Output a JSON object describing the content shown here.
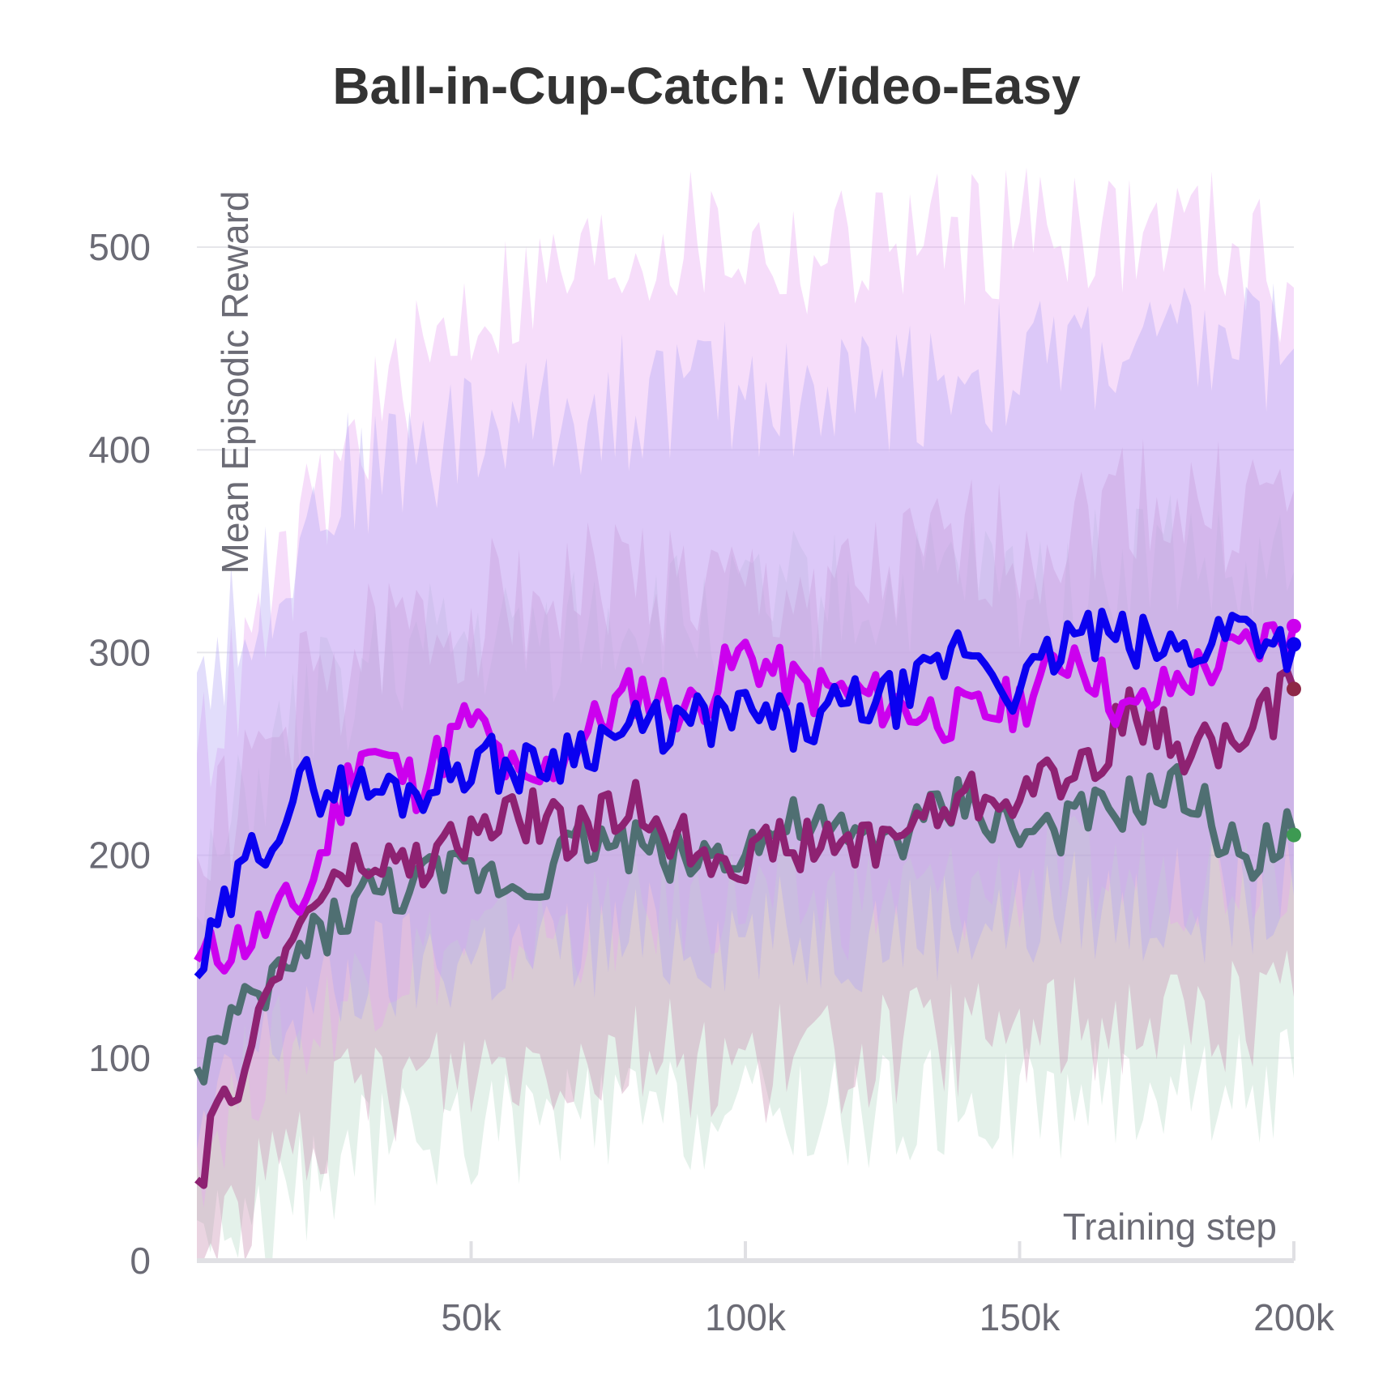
{
  "chart_data": {
    "type": "line",
    "title": "Ball-in-Cup-Catch: Video-Easy",
    "xlabel": "Training step",
    "ylabel": "Mean Episodic Reward",
    "xlim": [
      0,
      200000
    ],
    "ylim": [
      0,
      500
    ],
    "x_ticks": [
      "50k",
      "100k",
      "150k",
      "200k"
    ],
    "x_tick_values": [
      50000,
      100000,
      150000,
      200000
    ],
    "y_ticks": [
      "0",
      "100",
      "200",
      "300",
      "400",
      "500"
    ],
    "y_tick_values": [
      0,
      100,
      200,
      300,
      400,
      500
    ],
    "grid": "horizontal",
    "legend": "none",
    "colors": {
      "magenta": "#cc00ee",
      "blue": "#0a00f0",
      "maroon": "#8e2272",
      "slate": "#4f6f72",
      "end_green": "#3d9a52",
      "end_maroon": "#8e2747",
      "band_magenta": "#e7a6f2",
      "band_blue": "#b3a6f4",
      "band_maroon": "#c98fb0",
      "band_slate": "#b8d9c7",
      "grid": "#e6e6ea",
      "axis": "#e0e0e4"
    },
    "series": [
      {
        "key": "magenta",
        "x": [
          0,
          10000,
          20000,
          30000,
          40000,
          50000,
          60000,
          70000,
          80000,
          90000,
          100000,
          110000,
          120000,
          130000,
          140000,
          150000,
          160000,
          170000,
          180000,
          190000,
          200000
        ],
        "y": [
          148,
          160,
          180,
          255,
          235,
          268,
          230,
          258,
          282,
          272,
          300,
          282,
          280,
          272,
          268,
          275,
          302,
          268,
          288,
          300,
          313
        ],
        "lower": [
          50,
          95,
          110,
          140,
          150,
          155,
          160,
          165,
          170,
          175,
          180,
          175,
          178,
          180,
          182,
          185,
          190,
          188,
          192,
          195,
          200
        ],
        "upper": [
          250,
          300,
          360,
          410,
          440,
          470,
          480,
          490,
          500,
          505,
          500,
          495,
          500,
          505,
          505,
          510,
          515,
          505,
          510,
          500,
          480
        ]
      },
      {
        "key": "blue",
        "x": [
          0,
          10000,
          20000,
          30000,
          40000,
          50000,
          60000,
          70000,
          80000,
          90000,
          100000,
          110000,
          120000,
          130000,
          140000,
          150000,
          160000,
          170000,
          180000,
          190000,
          200000
        ],
        "y": [
          140,
          200,
          235,
          232,
          232,
          248,
          242,
          255,
          262,
          265,
          270,
          262,
          275,
          278,
          305,
          280,
          310,
          305,
          300,
          315,
          304
        ],
        "lower": [
          55,
          100,
          125,
          140,
          145,
          150,
          150,
          155,
          158,
          160,
          162,
          160,
          162,
          165,
          170,
          168,
          175,
          172,
          175,
          178,
          180
        ],
        "upper": [
          290,
          320,
          370,
          390,
          400,
          410,
          415,
          420,
          425,
          430,
          430,
          425,
          430,
          435,
          440,
          440,
          450,
          445,
          450,
          455,
          450
        ]
      },
      {
        "key": "maroon",
        "x": [
          0,
          10000,
          20000,
          30000,
          40000,
          50000,
          60000,
          70000,
          80000,
          90000,
          100000,
          110000,
          120000,
          130000,
          140000,
          150000,
          160000,
          170000,
          180000,
          190000,
          200000
        ],
        "y": [
          40,
          110,
          175,
          195,
          195,
          210,
          220,
          210,
          225,
          205,
          200,
          205,
          205,
          215,
          228,
          232,
          240,
          268,
          255,
          255,
          282
        ],
        "lower": [
          0,
          30,
          60,
          80,
          90,
          95,
          100,
          100,
          105,
          100,
          95,
          100,
          100,
          105,
          110,
          112,
          115,
          120,
          118,
          120,
          130
        ],
        "upper": [
          200,
          240,
          280,
          300,
          310,
          320,
          330,
          330,
          340,
          330,
          325,
          330,
          330,
          340,
          350,
          355,
          360,
          380,
          370,
          370,
          380
        ]
      },
      {
        "key": "slate",
        "x": [
          0,
          10000,
          20000,
          30000,
          40000,
          50000,
          60000,
          70000,
          80000,
          90000,
          100000,
          110000,
          120000,
          130000,
          140000,
          150000,
          160000,
          170000,
          180000,
          190000,
          200000
        ],
        "y": [
          95,
          125,
          155,
          180,
          185,
          192,
          185,
          208,
          205,
          198,
          205,
          215,
          205,
          212,
          228,
          210,
          215,
          225,
          232,
          200,
          210
        ],
        "lower": [
          20,
          15,
          35,
          55,
          60,
          65,
          65,
          70,
          72,
          70,
          72,
          75,
          72,
          75,
          80,
          78,
          80,
          85,
          88,
          85,
          90
        ],
        "upper": [
          170,
          230,
          270,
          290,
          300,
          305,
          305,
          315,
          320,
          315,
          320,
          330,
          325,
          330,
          340,
          330,
          335,
          345,
          350,
          330,
          340
        ]
      }
    ]
  }
}
